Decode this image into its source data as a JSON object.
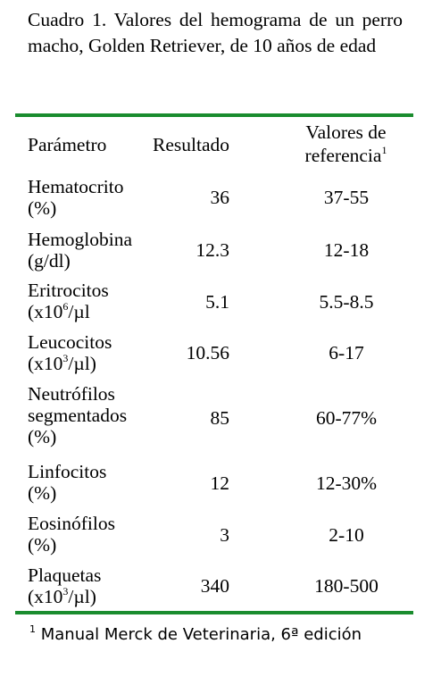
{
  "caption": "Cuadro 1. Valores del hemograma de un perro macho, Golden Retriever, de 10 años de edad",
  "table": {
    "headers": {
      "parametro": "Parámetro",
      "resultado": "Resultado",
      "referencia_line1": "Valores de",
      "referencia_line2": "referencia",
      "referencia_sup": "1"
    },
    "rows": [
      {
        "param": [
          "Hematocrito",
          "(%)"
        ],
        "resultado": "36",
        "referencia": "37-55"
      },
      {
        "param": [
          "Hemoglobina",
          "(g/dl)"
        ],
        "resultado": "12.3",
        "referencia": "12-18"
      },
      {
        "param": [
          "Eritrocitos",
          "(x10",
          "6",
          "/µl"
        ],
        "resultado": "5.1",
        "referencia": "5.5-8.5"
      },
      {
        "param": [
          "Leucocitos",
          "(x10",
          "3",
          "/µl)"
        ],
        "resultado": "10.56",
        "referencia": "6-17"
      },
      {
        "param": [
          "Neutrófilos",
          "segmentados",
          "(%)"
        ],
        "resultado": "85",
        "referencia": "60-77%"
      },
      {
        "param": [
          "Linfocitos",
          "(%)"
        ],
        "resultado": "12",
        "referencia": "12-30%"
      },
      {
        "param": [
          "Eosinófilos",
          "(%)"
        ],
        "resultado": "3",
        "referencia": "2-10"
      },
      {
        "param": [
          "Plaquetas",
          "(x10",
          "3",
          "/µl)"
        ],
        "resultado": "340",
        "referencia": "180-500"
      }
    ]
  },
  "footnote": {
    "marker": "1",
    "text": " Manual Merck de Veterinaria, 6ª edición"
  },
  "colors": {
    "rule": "#1a8c2e"
  }
}
